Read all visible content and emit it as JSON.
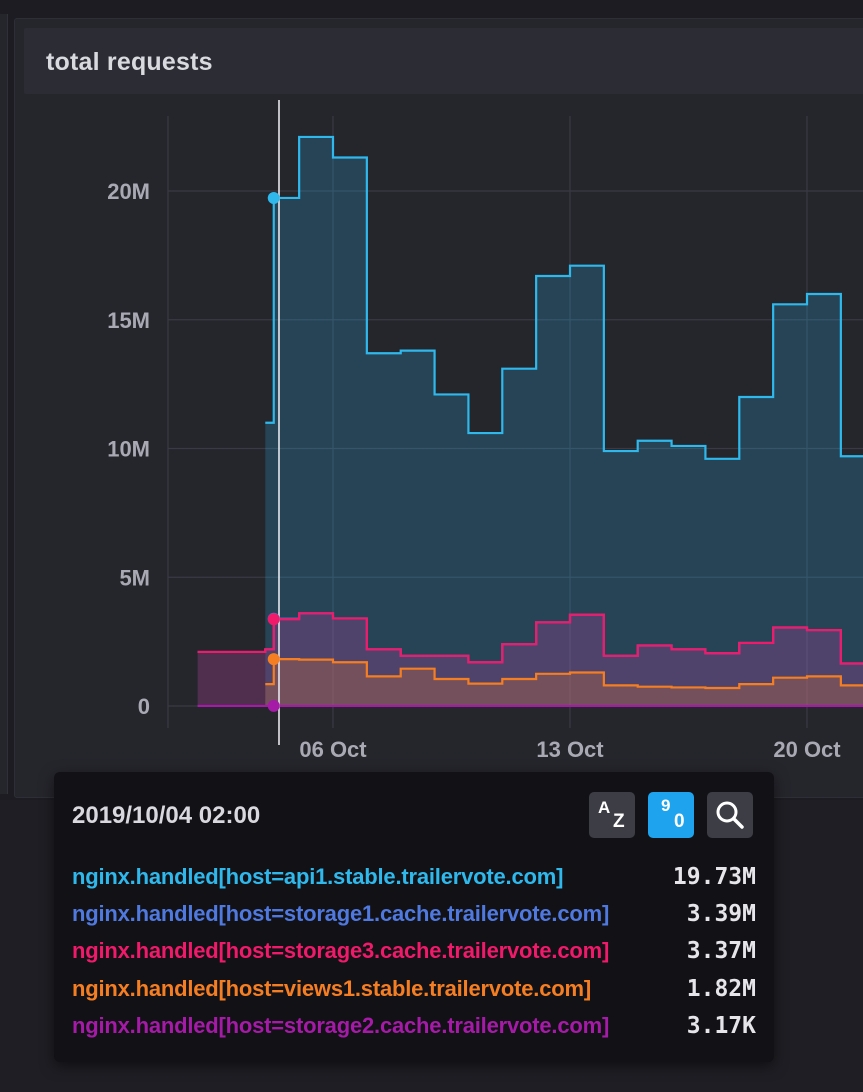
{
  "panel": {
    "title": "total requests"
  },
  "colors": {
    "api1": "#2fb8ec",
    "storage1": "#5079e0",
    "storage3": "#f0196a",
    "views1": "#f57e23",
    "storage2": "#a61aa8"
  },
  "chart_data": {
    "type": "area",
    "step": true,
    "title": "total requests",
    "ylim": [
      0,
      23500000
    ],
    "yticks": [
      {
        "value": 0,
        "label": "0"
      },
      {
        "value": 5000000,
        "label": "5M"
      },
      {
        "value": 10000000,
        "label": "10M"
      },
      {
        "value": 15000000,
        "label": "15M"
      },
      {
        "value": 20000000,
        "label": "20M"
      }
    ],
    "xticks": [
      {
        "value": 3,
        "label": "06 Oct"
      },
      {
        "value": 10,
        "label": "13 Oct"
      },
      {
        "value": 17,
        "label": "20 Oct"
      }
    ],
    "x": [
      -1,
      0,
      1,
      1.25,
      2,
      3,
      4,
      5,
      6,
      7,
      8,
      9,
      10,
      11,
      12,
      13,
      14,
      15,
      16,
      17,
      18,
      19
    ],
    "series": [
      {
        "name": "nginx.handled[host=api1.stable.trailervote.com]",
        "color": "#2fb8ec",
        "values": [
          null,
          null,
          11000000,
          19730000,
          22100000,
          21300000,
          13700000,
          13800000,
          12100000,
          10600000,
          13100000,
          16700000,
          17100000,
          9900000,
          10300000,
          10100000,
          9600000,
          12000000,
          15600000,
          16000000,
          9700000,
          9700000
        ]
      },
      {
        "name": "nginx.handled[host=storage1.cache.trailervote.com]",
        "color": "#5079e0",
        "values": [
          2100000,
          2100000,
          2200000,
          3390000,
          3600000,
          3400000,
          2200000,
          1950000,
          1950000,
          1700000,
          2400000,
          3250000,
          3550000,
          1950000,
          2350000,
          2200000,
          2050000,
          2450000,
          3050000,
          2950000,
          1650000,
          1650000
        ]
      },
      {
        "name": "nginx.handled[host=storage3.cache.trailervote.com]",
        "color": "#f0196a",
        "values": [
          2100000,
          2100000,
          2200000,
          3370000,
          3600000,
          3400000,
          2200000,
          1950000,
          1950000,
          1700000,
          2400000,
          3250000,
          3550000,
          1950000,
          2350000,
          2200000,
          2050000,
          2450000,
          3050000,
          2950000,
          1650000,
          1650000
        ]
      },
      {
        "name": "nginx.handled[host=views1.stable.trailervote.com]",
        "color": "#f57e23",
        "values": [
          null,
          null,
          850000,
          1820000,
          1800000,
          1700000,
          1150000,
          1450000,
          1050000,
          870000,
          1050000,
          1250000,
          1300000,
          800000,
          750000,
          720000,
          700000,
          850000,
          1100000,
          1150000,
          800000,
          800000
        ]
      },
      {
        "name": "nginx.handled[host=storage2.cache.trailervote.com]",
        "color": "#a61aa8",
        "values": [
          3170,
          3170,
          3170,
          3170,
          3170,
          3170,
          3170,
          3170,
          3170,
          3170,
          3170,
          3170,
          3170,
          3170,
          3170,
          3170,
          3170,
          3170,
          3170,
          3170,
          3170,
          3170
        ]
      }
    ],
    "hover_x": 1.25,
    "grid": true,
    "legend": "tooltip"
  },
  "tooltip": {
    "time": "2019/10/04 02:00",
    "sort_alpha": {
      "top": "A",
      "bottom": "Z"
    },
    "sort_numeric": {
      "top": "9",
      "bottom": "0"
    },
    "search_icon": "search-icon",
    "rows": [
      {
        "name": "nginx.handled[host=api1.stable.trailervote.com]",
        "value": "19.73M",
        "color": "#2fb8ec"
      },
      {
        "name": "nginx.handled[host=storage1.cache.trailervote.com]",
        "value": "3.39M",
        "color": "#5079e0"
      },
      {
        "name": "nginx.handled[host=storage3.cache.trailervote.com]",
        "value": "3.37M",
        "color": "#f0196a"
      },
      {
        "name": "nginx.handled[host=views1.stable.trailervote.com]",
        "value": "1.82M",
        "color": "#f57e23"
      },
      {
        "name": "nginx.handled[host=storage2.cache.trailervote.com]",
        "value": "3.17K",
        "color": "#a61aa8"
      }
    ]
  }
}
